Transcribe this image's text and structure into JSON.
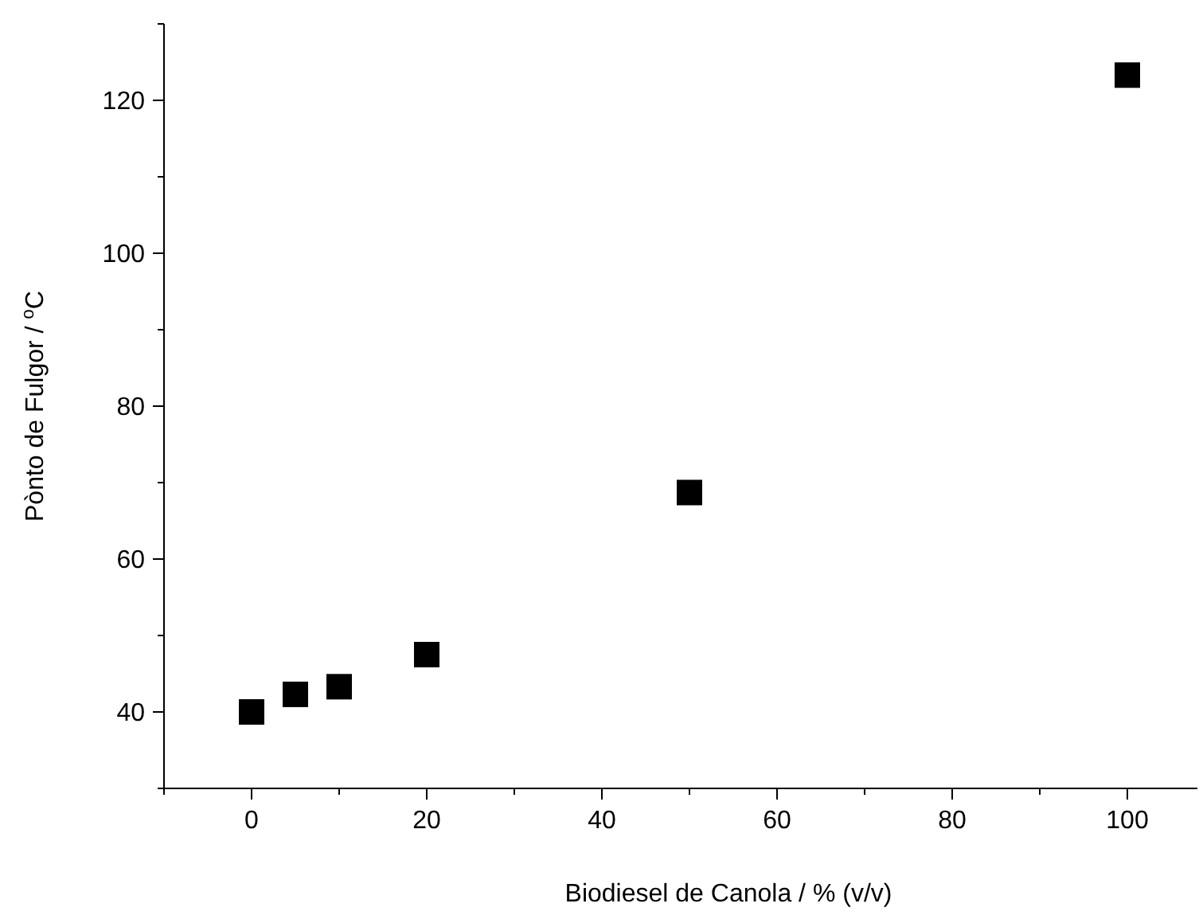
{
  "chart_data": {
    "type": "scatter",
    "xlabel": "Biodiesel de Canola / % (v/v)",
    "ylabel": "Pònto de Fulgor / $^{o}$C",
    "x": [
      0,
      5,
      10,
      20,
      50,
      100
    ],
    "series": [
      {
        "color": "#000000",
        "values": [
          40,
          42.3,
          43.3,
          47.5,
          68.7,
          123.3
        ]
      }
    ],
    "marker": "square",
    "grid": false,
    "xlim": [
      -10,
      108
    ],
    "ylim": [
      30,
      130
    ],
    "xticks": [
      {
        "value": -10,
        "label": null
      },
      0,
      {
        "value": 10,
        "label": null
      },
      20,
      {
        "value": 30,
        "label": null
      },
      40,
      {
        "value": 50,
        "label": null
      },
      60,
      {
        "value": 70,
        "label": null
      },
      80,
      {
        "value": 90,
        "label": null
      },
      100
    ],
    "yticks": [
      {
        "value": 30,
        "label": null
      },
      40,
      {
        "value": 50,
        "label": null
      },
      60,
      {
        "value": 70,
        "label": null
      },
      80,
      {
        "value": 90,
        "label": null
      },
      100,
      {
        "value": 110,
        "label": null
      },
      120,
      {
        "value": 130,
        "label": null
      }
    ]
  }
}
